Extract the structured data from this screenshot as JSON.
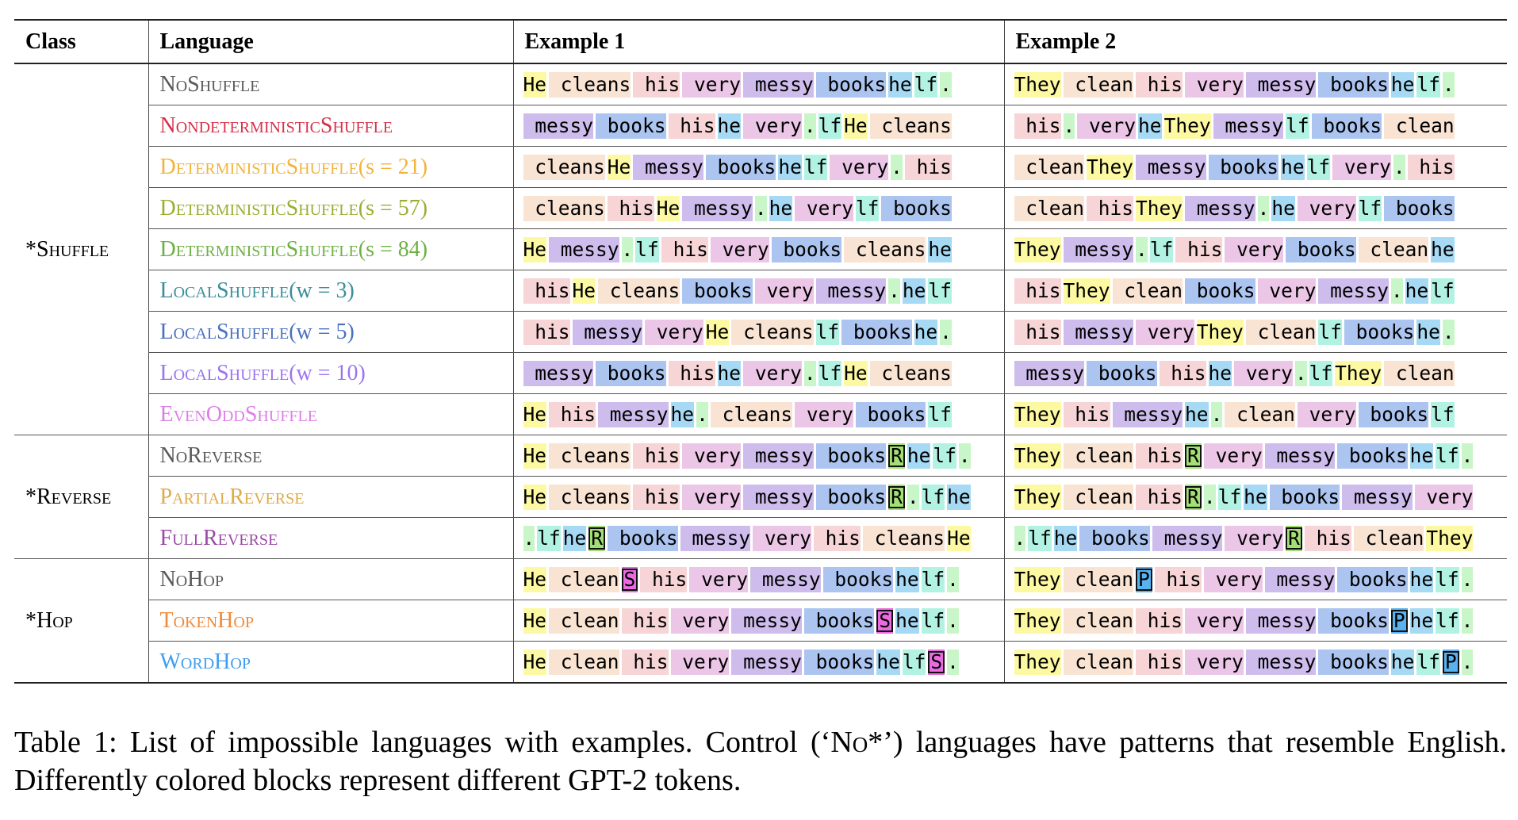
{
  "headers": {
    "class": "Class",
    "language": "Language",
    "example1": "Example 1",
    "example2": "Example 2"
  },
  "token_colors": {
    "He": "#fdf9a3",
    "They": "#fdf9a3",
    "cleans": "#f9e3d3",
    "clean": "#f9e3d3",
    "his": "#f7d4d6",
    "very": "#ecc6e6",
    "messy": "#cebdec",
    "books": "#abc5f0",
    "he": "#a6d9f3",
    "lf": "#b1f2e3",
    ".": "#c9f6c9",
    "R": "#a3df74",
    "S": "#e96be0",
    "P": "#59b2f0"
  },
  "marker_tokens": [
    "R",
    "S",
    "P"
  ],
  "groups": [
    {
      "class": "*Shuffle",
      "rows": [
        {
          "name": "NoShuffle",
          "param": "",
          "color": "#5a5a5a",
          "ex1": [
            "He",
            " cleans",
            " his",
            " very",
            " messy",
            " books",
            "he",
            "lf",
            "."
          ],
          "ex2": [
            "They",
            " clean",
            " his",
            " very",
            " messy",
            " books",
            "he",
            "lf",
            "."
          ]
        },
        {
          "name": "NondeterministicShuffle",
          "param": "",
          "color": "#d7314a",
          "ex1": [
            " messy",
            " books",
            " his",
            "he",
            " very",
            ".",
            "lf",
            "He",
            " cleans"
          ],
          "ex2": [
            " his",
            ".",
            " very",
            "he",
            "They",
            " messy",
            "lf",
            " books",
            " clean"
          ]
        },
        {
          "name": "DeterministicShuffle",
          "param": "(s = 21)",
          "color": "#f2b33d",
          "ex1": [
            " cleans",
            "He",
            " messy",
            " books",
            "he",
            "lf",
            " very",
            ".",
            " his"
          ],
          "ex2": [
            " clean",
            "They",
            " messy",
            " books",
            "he",
            "lf",
            " very",
            ".",
            " his"
          ]
        },
        {
          "name": "DeterministicShuffle",
          "param": "(s = 57)",
          "color": "#9aae33",
          "ex1": [
            " cleans",
            " his",
            "He",
            " messy",
            ".",
            "he",
            " very",
            "lf",
            " books"
          ],
          "ex2": [
            " clean",
            " his",
            "They",
            " messy",
            ".",
            "he",
            " very",
            "lf",
            " books"
          ]
        },
        {
          "name": "DeterministicShuffle",
          "param": "(s = 84)",
          "color": "#6db143",
          "ex1": [
            "He",
            " messy",
            ".",
            "lf",
            " his",
            " very",
            " books",
            " cleans",
            "he"
          ],
          "ex2": [
            "They",
            " messy",
            ".",
            "lf",
            " his",
            " very",
            " books",
            " clean",
            "he"
          ]
        },
        {
          "name": "LocalShuffle",
          "param": "(w = 3)",
          "color": "#3c8e9a",
          "ex1": [
            " his",
            "He",
            " cleans",
            " books",
            " very",
            " messy",
            ".",
            "he",
            "lf"
          ],
          "ex2": [
            " his",
            "They",
            " clean",
            " books",
            " very",
            " messy",
            ".",
            "he",
            "lf"
          ]
        },
        {
          "name": "LocalShuffle",
          "param": "(w = 5)",
          "color": "#4a70c0",
          "ex1": [
            " his",
            " messy",
            " very",
            "He",
            " cleans",
            "lf",
            " books",
            "he",
            "."
          ],
          "ex2": [
            " his",
            " messy",
            " very",
            "They",
            " clean",
            "lf",
            " books",
            "he",
            "."
          ]
        },
        {
          "name": "LocalShuffle",
          "param": "(w = 10)",
          "color": "#9c74f0",
          "ex1": [
            " messy",
            " books",
            " his",
            "he",
            " very",
            ".",
            "lf",
            "He",
            " cleans"
          ],
          "ex2": [
            " messy",
            " books",
            " his",
            "he",
            " very",
            ".",
            "lf",
            "They",
            " clean"
          ]
        },
        {
          "name": "EvenOddShuffle",
          "param": "",
          "color": "#dc7fe8",
          "ex1": [
            "He",
            " his",
            " messy",
            "he",
            ".",
            " cleans",
            " very",
            " books",
            "lf"
          ],
          "ex2": [
            "They",
            " his",
            " messy",
            "he",
            ".",
            " clean",
            " very",
            " books",
            "lf"
          ]
        }
      ]
    },
    {
      "class": "*Reverse",
      "rows": [
        {
          "name": "NoReverse",
          "param": "",
          "color": "#5a5a5a",
          "ex1": [
            "He",
            " cleans",
            " his",
            " very",
            " messy",
            " books",
            "R",
            "he",
            "lf",
            "."
          ],
          "ex2": [
            "They",
            " clean",
            " his",
            "R",
            " very",
            " messy",
            " books",
            "he",
            "lf",
            "."
          ]
        },
        {
          "name": "PartialReverse",
          "param": "",
          "color": "#dfaa4a",
          "ex1": [
            "He",
            " cleans",
            " his",
            " very",
            " messy",
            " books",
            "R",
            ".",
            "lf",
            "he"
          ],
          "ex2": [
            "They",
            " clean",
            " his",
            "R",
            ".",
            "lf",
            "he",
            " books",
            " messy",
            " very"
          ]
        },
        {
          "name": "FullReverse",
          "param": "",
          "color": "#9b4aa6",
          "ex1": [
            ".",
            "lf",
            "he",
            "R",
            " books",
            " messy",
            " very",
            " his",
            " cleans",
            "He"
          ],
          "ex2": [
            ".",
            "lf",
            "he",
            " books",
            " messy",
            " very",
            "R",
            " his",
            " clean",
            "They"
          ]
        }
      ]
    },
    {
      "class": "*Hop",
      "rows": [
        {
          "name": "NoHop",
          "param": "",
          "color": "#5a5a5a",
          "ex1": [
            "He",
            " clean",
            "S",
            " his",
            " very",
            " messy",
            " books",
            "he",
            "lf",
            "."
          ],
          "ex2": [
            "They",
            " clean",
            "P",
            " his",
            " very",
            " messy",
            " books",
            "he",
            "lf",
            "."
          ]
        },
        {
          "name": "TokenHop",
          "param": "",
          "color": "#ee8a3c",
          "ex1": [
            "He",
            " clean",
            " his",
            " very",
            " messy",
            " books",
            "S",
            "he",
            "lf",
            "."
          ],
          "ex2": [
            "They",
            " clean",
            " his",
            " very",
            " messy",
            " books",
            "P",
            "he",
            "lf",
            "."
          ]
        },
        {
          "name": "WordHop",
          "param": "",
          "color": "#3d9df0",
          "ex1": [
            "He",
            " clean",
            " his",
            " very",
            " messy",
            " books",
            "he",
            "lf",
            "S",
            "."
          ],
          "ex2": [
            "They",
            " clean",
            " his",
            " very",
            " messy",
            " books",
            "he",
            "lf",
            "P",
            "."
          ]
        }
      ]
    }
  ],
  "caption": {
    "prefix": "Table 1:  List of impossible languages with examples.  Control (‘",
    "control": "No*",
    "suffix": "’) languages have patterns that resemble English. Differently colored blocks represent different GPT-2 tokens."
  }
}
